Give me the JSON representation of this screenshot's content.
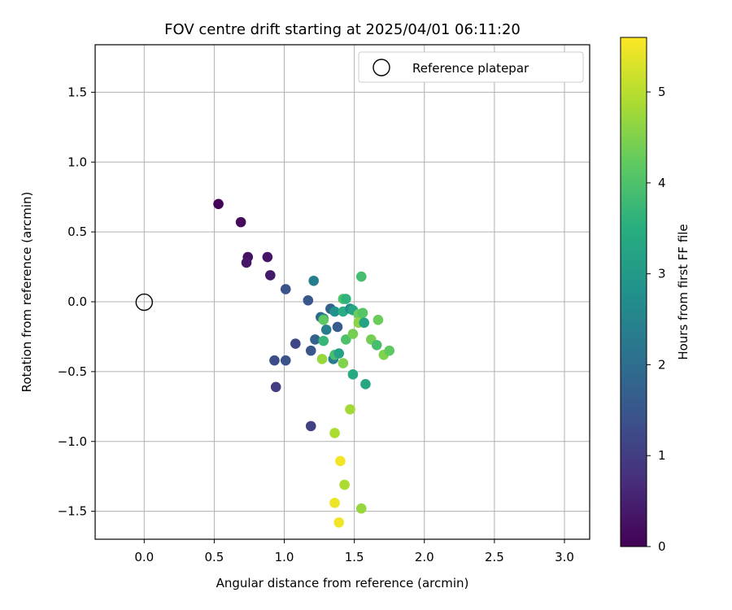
{
  "chart_data": {
    "type": "scatter",
    "title": "FOV centre drift starting at 2025/04/01 06:11:20",
    "xlabel": "Angular distance from reference (arcmin)",
    "ylabel": "Rotation from reference (arcmin)",
    "xlim": [
      -0.35,
      3.18
    ],
    "ylim": [
      -1.7,
      1.84
    ],
    "xticks": [
      0.0,
      0.5,
      1.0,
      1.5,
      2.0,
      2.5,
      3.0
    ],
    "xtick_labels": [
      "0.0",
      "0.5",
      "1.0",
      "1.5",
      "2.0",
      "2.5",
      "3.0"
    ],
    "yticks": [
      -1.5,
      -1.0,
      -0.5,
      0.0,
      0.5,
      1.0,
      1.5
    ],
    "ytick_labels": [
      "−1.5",
      "−1.0",
      "−0.5",
      "0.0",
      "0.5",
      "1.0",
      "1.5"
    ],
    "grid": true,
    "legend": {
      "position": "top-right",
      "entries": [
        "Reference platepar"
      ]
    },
    "reference_point": {
      "x": 0.0,
      "y": 0.0
    },
    "colorbar": {
      "label": "Hours from first FF file",
      "range": [
        0,
        5.6
      ],
      "ticks": [
        0,
        1,
        2,
        3,
        4,
        5
      ],
      "tick_labels": [
        "0",
        "1",
        "2",
        "3",
        "4",
        "5"
      ],
      "colormap": "viridis"
    },
    "points": [
      {
        "x": 0.53,
        "y": 0.7,
        "hours": 0.05
      },
      {
        "x": 0.69,
        "y": 0.57,
        "hours": 0.15
      },
      {
        "x": 0.74,
        "y": 0.32,
        "hours": 0.25
      },
      {
        "x": 0.73,
        "y": 0.28,
        "hours": 0.35
      },
      {
        "x": 0.88,
        "y": 0.32,
        "hours": 0.3
      },
      {
        "x": 0.9,
        "y": 0.19,
        "hours": 0.4
      },
      {
        "x": 1.01,
        "y": 0.09,
        "hours": 1.4
      },
      {
        "x": 1.17,
        "y": 0.01,
        "hours": 1.5
      },
      {
        "x": 1.21,
        "y": 0.15,
        "hours": 2.4
      },
      {
        "x": 1.08,
        "y": -0.3,
        "hours": 1.2
      },
      {
        "x": 0.93,
        "y": -0.42,
        "hours": 1.3
      },
      {
        "x": 1.01,
        "y": -0.42,
        "hours": 1.4
      },
      {
        "x": 0.94,
        "y": -0.61,
        "hours": 1.0
      },
      {
        "x": 1.19,
        "y": -0.35,
        "hours": 1.5
      },
      {
        "x": 1.19,
        "y": -0.89,
        "hours": 1.1
      },
      {
        "x": 1.22,
        "y": -0.27,
        "hours": 1.8
      },
      {
        "x": 1.26,
        "y": -0.11,
        "hours": 1.9
      },
      {
        "x": 1.28,
        "y": -0.12,
        "hours": 2.5
      },
      {
        "x": 1.3,
        "y": -0.2,
        "hours": 2.4
      },
      {
        "x": 1.28,
        "y": -0.13,
        "hours": 4.2
      },
      {
        "x": 1.33,
        "y": -0.05,
        "hours": 1.7
      },
      {
        "x": 1.36,
        "y": -0.07,
        "hours": 2.8
      },
      {
        "x": 1.38,
        "y": -0.18,
        "hours": 1.6
      },
      {
        "x": 1.28,
        "y": -0.28,
        "hours": 3.7
      },
      {
        "x": 1.35,
        "y": -0.41,
        "hours": 2.3
      },
      {
        "x": 1.36,
        "y": -0.38,
        "hours": 3.9
      },
      {
        "x": 1.39,
        "y": -0.37,
        "hours": 3.2
      },
      {
        "x": 1.27,
        "y": -0.41,
        "hours": 4.7
      },
      {
        "x": 1.42,
        "y": -0.07,
        "hours": 3.5
      },
      {
        "x": 1.42,
        "y": 0.02,
        "hours": 4.0
      },
      {
        "x": 1.44,
        "y": 0.02,
        "hours": 3.6
      },
      {
        "x": 1.47,
        "y": -0.05,
        "hours": 2.7
      },
      {
        "x": 1.49,
        "y": -0.06,
        "hours": 3.3
      },
      {
        "x": 1.53,
        "y": -0.09,
        "hours": 4.3
      },
      {
        "x": 1.56,
        "y": -0.08,
        "hours": 4.1
      },
      {
        "x": 1.53,
        "y": -0.15,
        "hours": 4.6
      },
      {
        "x": 1.57,
        "y": -0.15,
        "hours": 3.2
      },
      {
        "x": 1.55,
        "y": 0.18,
        "hours": 3.9
      },
      {
        "x": 1.44,
        "y": -0.27,
        "hours": 4.0
      },
      {
        "x": 1.49,
        "y": -0.23,
        "hours": 4.4
      },
      {
        "x": 1.42,
        "y": -0.44,
        "hours": 4.5
      },
      {
        "x": 1.49,
        "y": -0.52,
        "hours": 3.4
      },
      {
        "x": 1.58,
        "y": -0.59,
        "hours": 3.3
      },
      {
        "x": 1.62,
        "y": -0.27,
        "hours": 4.4
      },
      {
        "x": 1.66,
        "y": -0.31,
        "hours": 3.9
      },
      {
        "x": 1.67,
        "y": -0.13,
        "hours": 4.3
      },
      {
        "x": 1.71,
        "y": -0.38,
        "hours": 4.5
      },
      {
        "x": 1.75,
        "y": -0.35,
        "hours": 4.2
      },
      {
        "x": 1.47,
        "y": -0.77,
        "hours": 4.8
      },
      {
        "x": 1.36,
        "y": -0.94,
        "hours": 4.9
      },
      {
        "x": 1.4,
        "y": -1.14,
        "hours": 5.5
      },
      {
        "x": 1.43,
        "y": -1.31,
        "hours": 4.9
      },
      {
        "x": 1.36,
        "y": -1.44,
        "hours": 5.45
      },
      {
        "x": 1.55,
        "y": -1.48,
        "hours": 4.7
      },
      {
        "x": 1.39,
        "y": -1.58,
        "hours": 5.5
      }
    ]
  }
}
